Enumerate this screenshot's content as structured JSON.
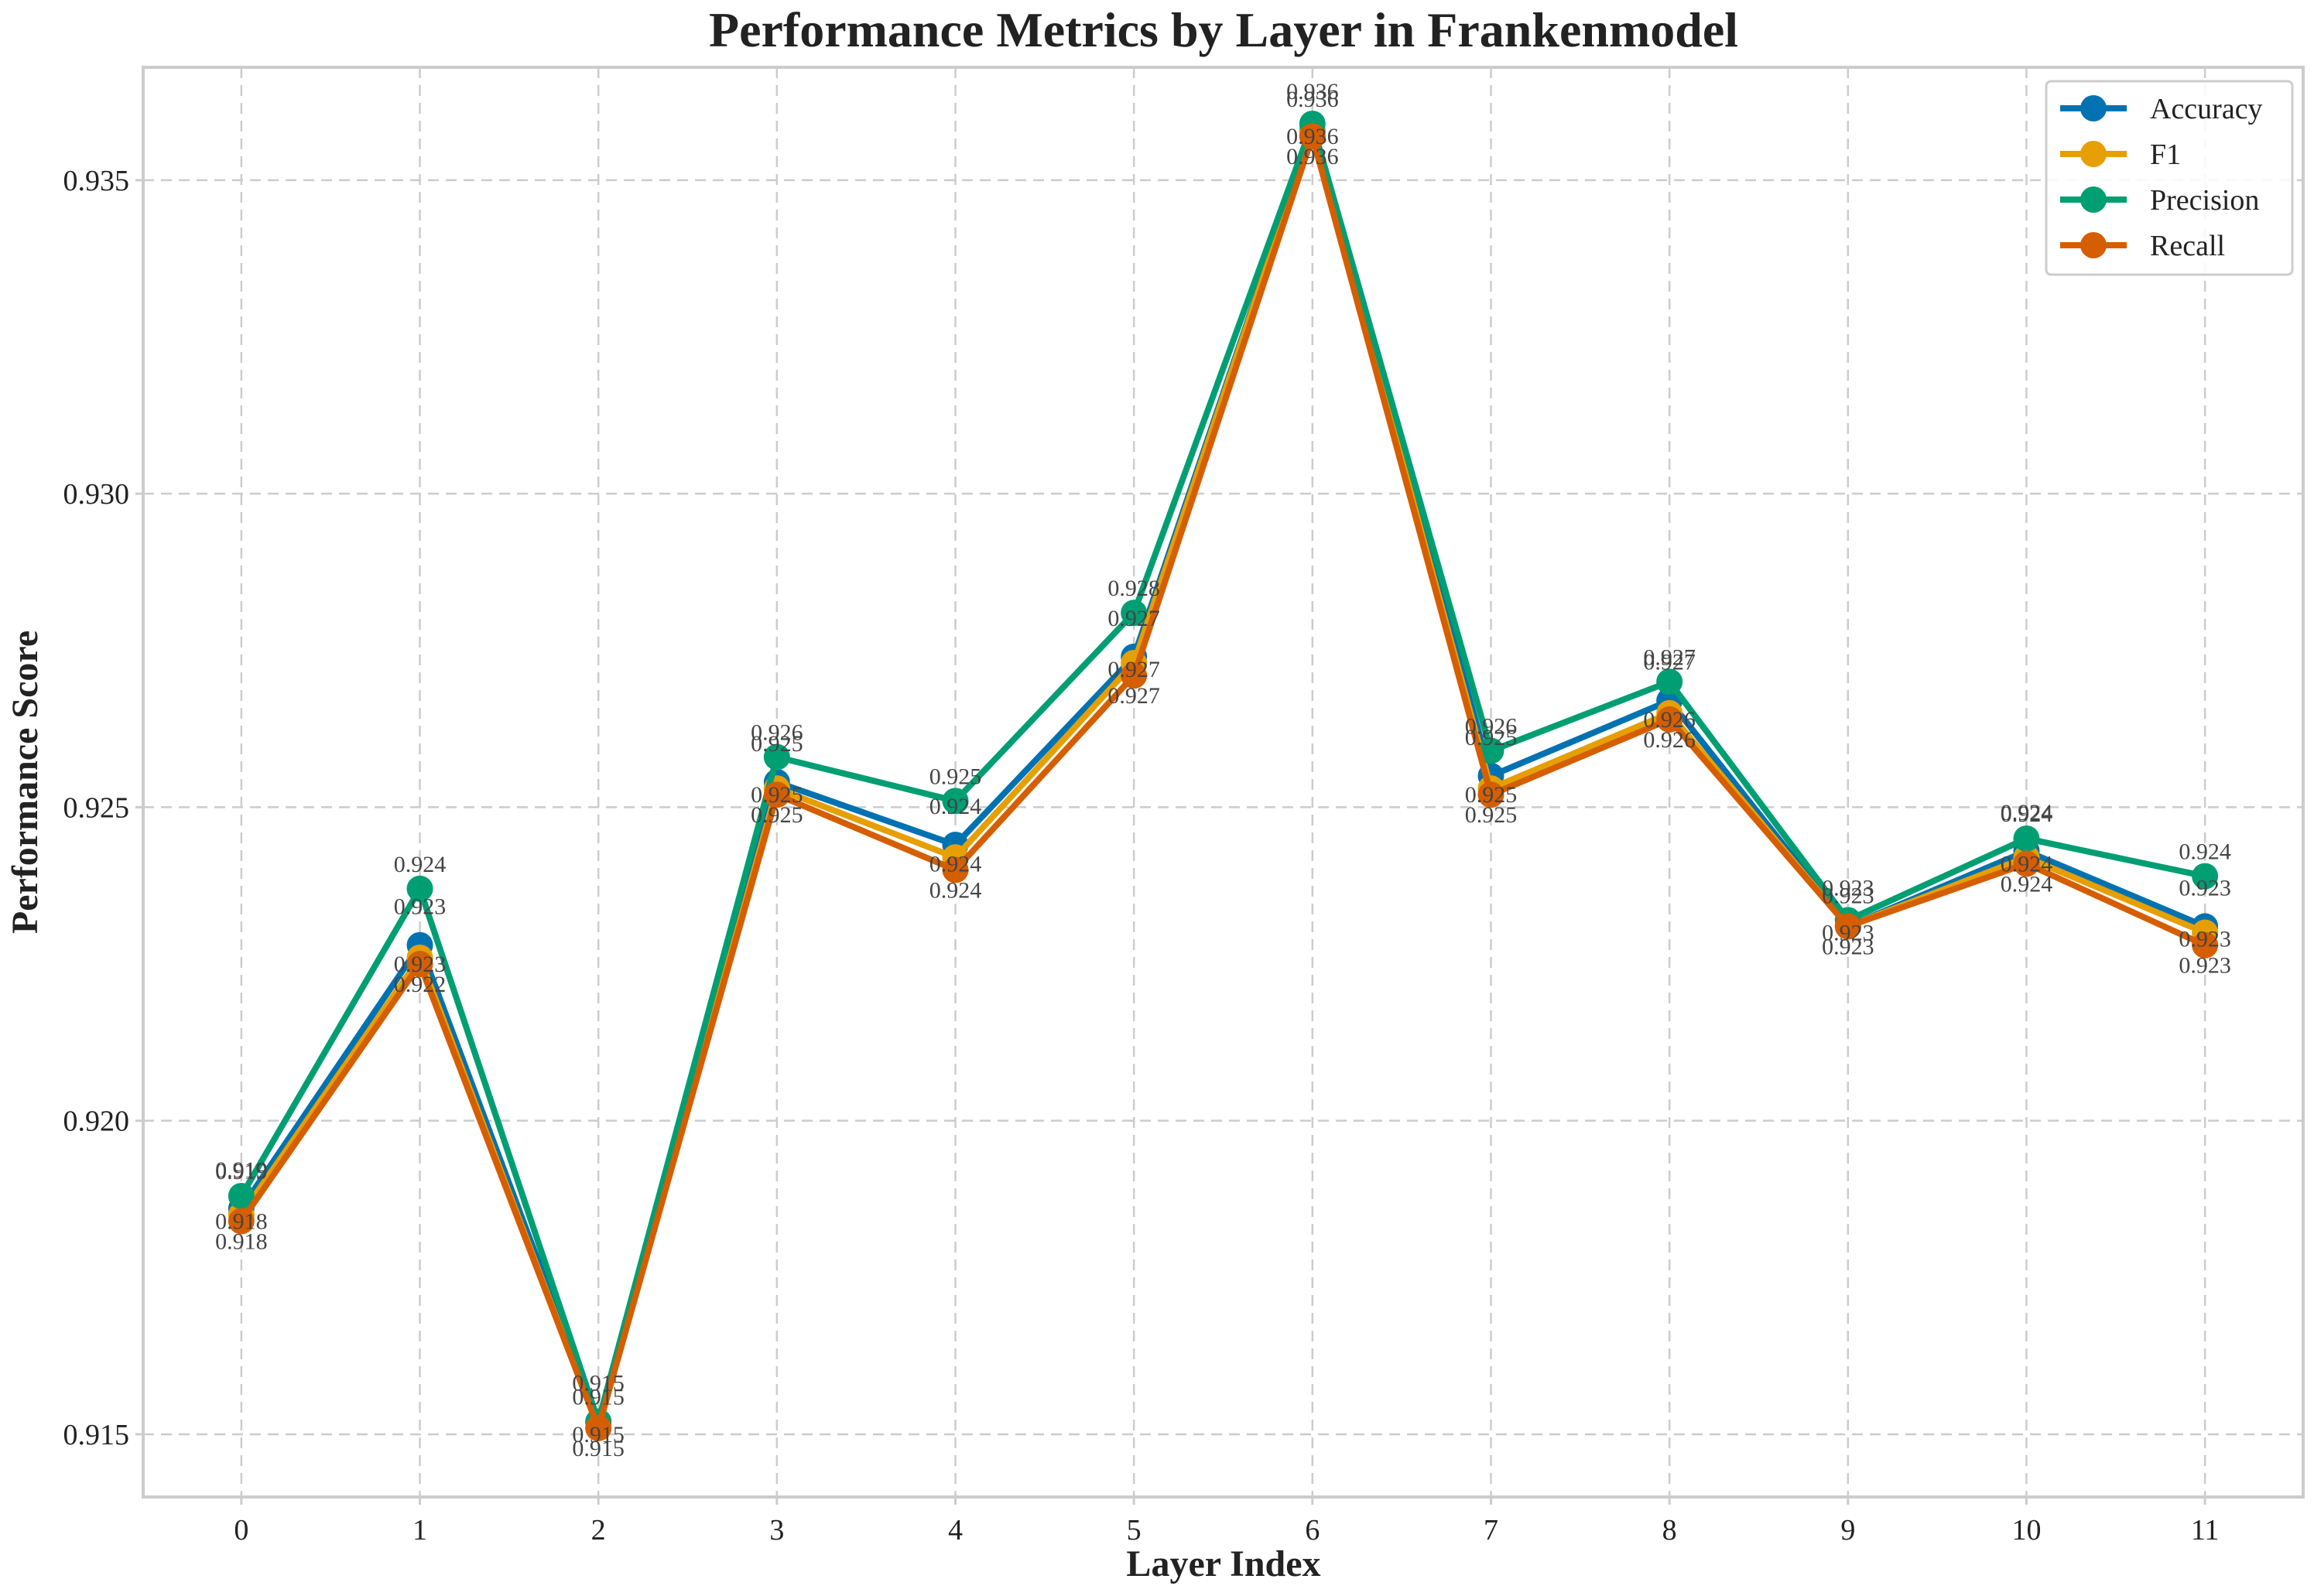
{
  "chart_data": {
    "type": "line",
    "title": "Performance Metrics by Layer in Frankenmodel",
    "xlabel": "Layer Index",
    "ylabel": "Performance Score",
    "x": [
      0,
      1,
      2,
      3,
      4,
      5,
      6,
      7,
      8,
      9,
      10,
      11
    ],
    "x_tick_labels": [
      "0",
      "1",
      "2",
      "3",
      "4",
      "5",
      "6",
      "7",
      "8",
      "9",
      "10",
      "11"
    ],
    "ylim": [
      0.914,
      0.9368
    ],
    "y_ticks": [
      0.915,
      0.92,
      0.925,
      0.93,
      0.935
    ],
    "y_tick_labels": [
      "0.915",
      "0.920",
      "0.925",
      "0.930",
      "0.935"
    ],
    "grid": true,
    "legend_position": "top-right",
    "data_labels": true,
    "series": [
      {
        "name": "Accuracy",
        "color": "#0072b2",
        "values": [
          0.9186,
          0.9228,
          0.9152,
          0.9254,
          0.9244,
          0.9274,
          0.9358,
          0.9255,
          0.9267,
          0.9231,
          0.9243,
          0.9231
        ]
      },
      {
        "name": "F1",
        "color": "#e69f00",
        "values": [
          0.9185,
          0.9226,
          0.9151,
          0.9253,
          0.9242,
          0.9273,
          0.9358,
          0.9253,
          0.9265,
          0.9231,
          0.9242,
          0.923
        ]
      },
      {
        "name": "Precision",
        "color": "#009e73",
        "values": [
          0.9188,
          0.9237,
          0.9152,
          0.9258,
          0.9251,
          0.9281,
          0.9359,
          0.9259,
          0.927,
          0.9232,
          0.9245,
          0.9239
        ]
      },
      {
        "name": "Recall",
        "color": "#d55e00",
        "values": [
          0.9184,
          0.9225,
          0.9151,
          0.9252,
          0.924,
          0.9271,
          0.9357,
          0.9252,
          0.9264,
          0.9231,
          0.9241,
          0.9228
        ]
      }
    ]
  }
}
